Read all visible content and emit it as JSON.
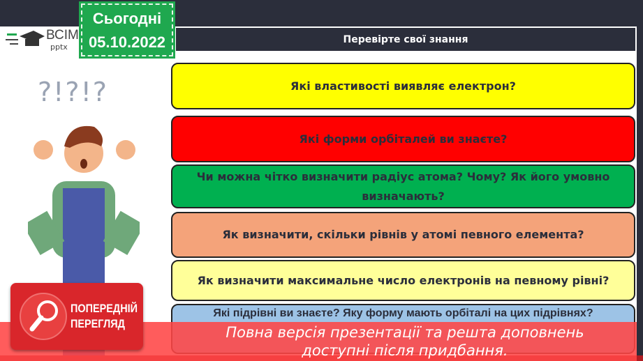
{
  "logo": {
    "brand": "ВСІМ",
    "sub": "pptx"
  },
  "date_badge": {
    "label": "Сьогодні",
    "date": "05.10.2022"
  },
  "header": {
    "title": "Перевірте свої знання"
  },
  "symbols": "?!?!?",
  "questions": [
    {
      "text": "Які властивості виявляє електрон?",
      "color": "#ffff00"
    },
    {
      "text": "Які форми орбіталей ви знаєте?",
      "color": "#ff0000"
    },
    {
      "text": "Чи можна чітко визначити радіус атома? Чому? Як його умовно визначають?",
      "color": "#00b050"
    },
    {
      "text": "Як визначити, скільки рівнів у атомі певного елемента?",
      "color": "#f4a37a"
    },
    {
      "text": "Як визначити максимальне число електронів на певному рівні?",
      "color": "#ffff99"
    },
    {
      "text": "Які підрівні ви знаєте? Яку форму мають орбіталі на цих підрівнях?",
      "color": "#9dc3e6"
    }
  ],
  "preview": {
    "line1": "ПОПЕРЕДНІЙ",
    "line2": "ПЕРЕГЛЯД"
  },
  "overlay": {
    "line1": "Повна версія презентації та решта доповнень",
    "line2": "доступні після придбання."
  }
}
